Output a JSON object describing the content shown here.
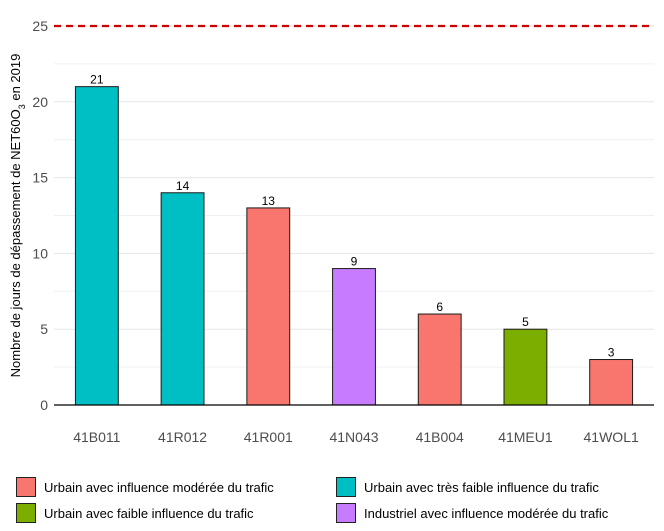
{
  "chart_data": {
    "type": "bar",
    "categories": [
      "41B011",
      "41R012",
      "41R001",
      "41N043",
      "41B004",
      "41MEU1",
      "41WOL1"
    ],
    "values": [
      21,
      14,
      13,
      9,
      6,
      5,
      3
    ],
    "bar_groups": [
      "Urbain avec très faible influence du trafic",
      "Urbain avec très faible influence du trafic",
      "Urbain avec influence modérée du trafic",
      "Industriel avec influence modérée du trafic",
      "Urbain avec influence modérée du trafic",
      "Urbain avec faible influence du trafic",
      "Urbain avec influence modérée du trafic"
    ],
    "ylabel": "Nombre de jours de dépassement de NET60O3 en 2019",
    "ylabel_parts": {
      "before": "Nombre de jours de dépassement de NET60O",
      "sub": "3",
      "after": " en 2019"
    },
    "ylim": [
      0,
      25
    ],
    "yticks": [
      0,
      5,
      10,
      15,
      20,
      25
    ],
    "threshold": 25,
    "threshold_color": "#cc0000",
    "grid": true,
    "legend_position": "bottom",
    "legend": [
      {
        "label": "Urbain avec influence modérée du trafic",
        "color": "#F8766D"
      },
      {
        "label": "Urbain avec très faible influence du trafic",
        "color": "#00BFC4"
      },
      {
        "label": "Urbain avec faible influence du trafic",
        "color": "#7CAE00"
      },
      {
        "label": "Industriel avec influence modérée du trafic",
        "color": "#C77CFF"
      }
    ]
  }
}
